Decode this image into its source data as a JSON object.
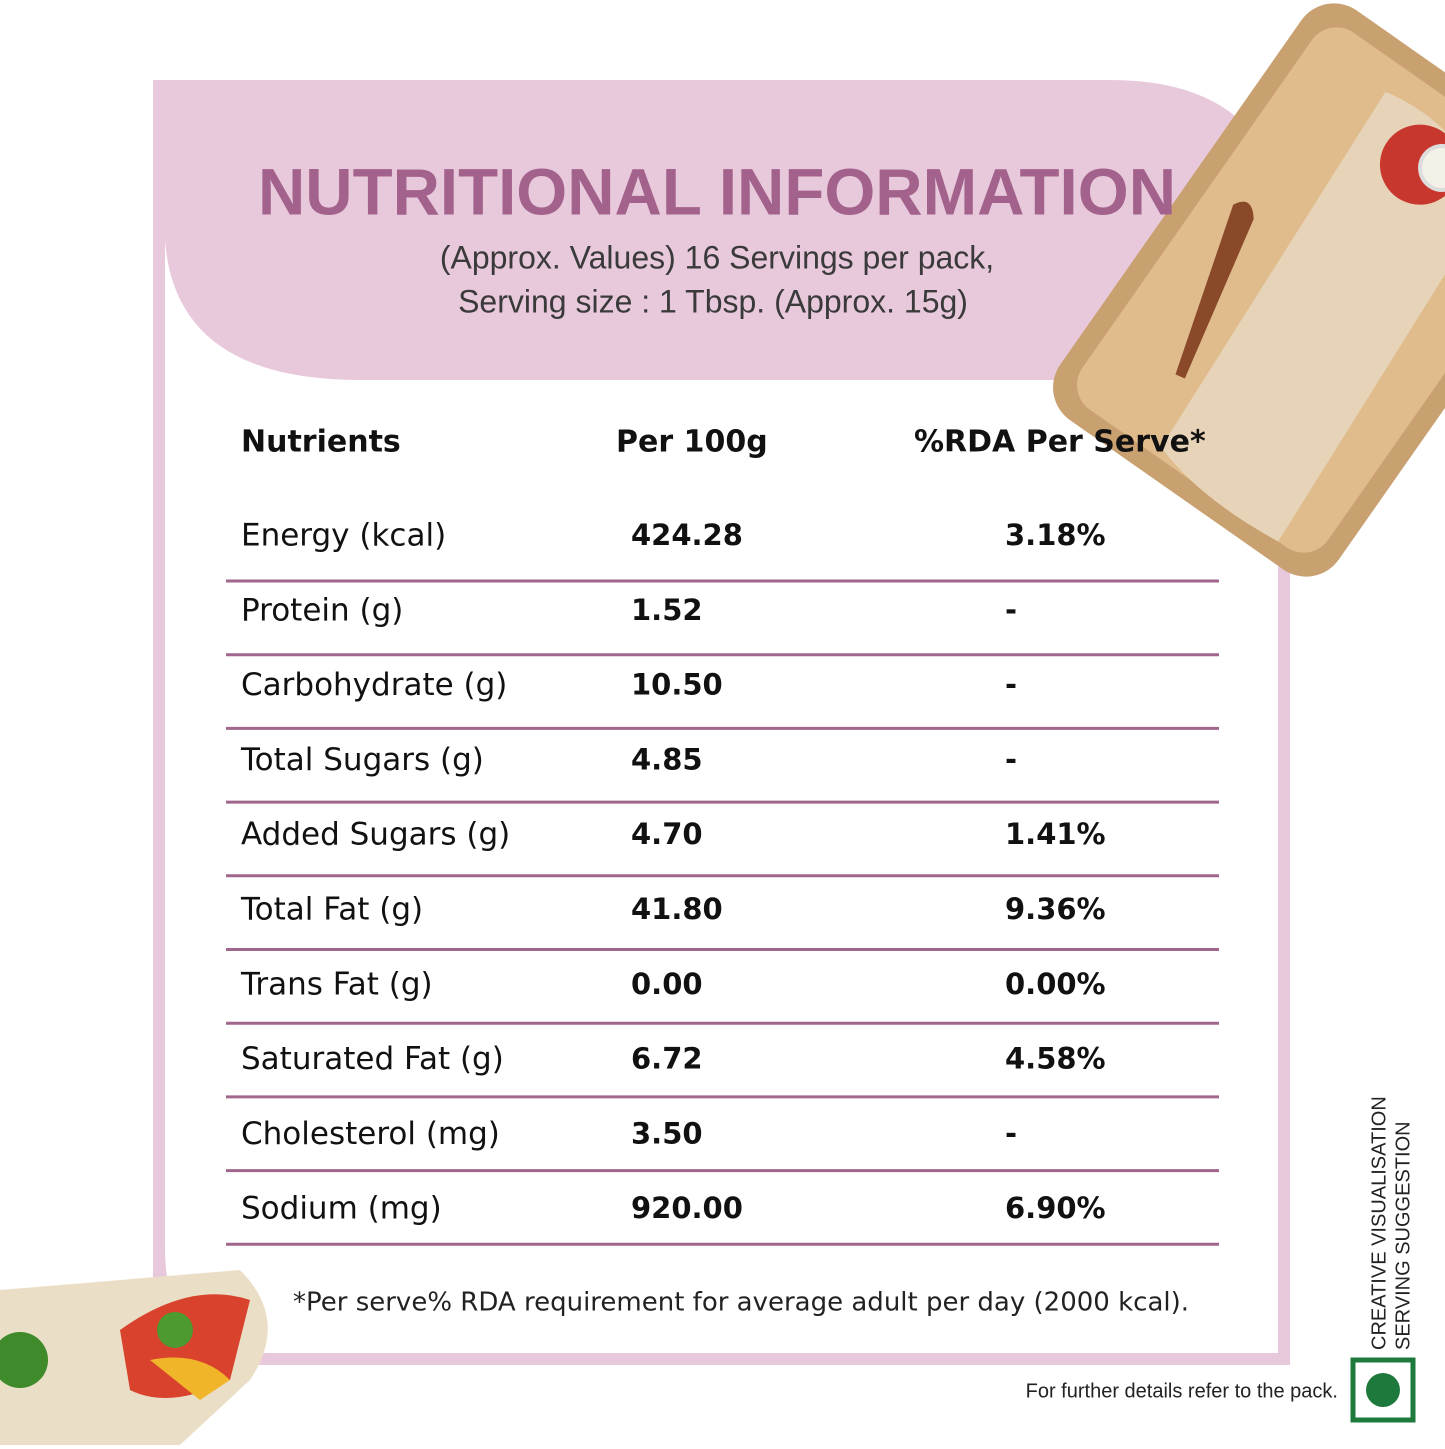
{
  "header": {
    "title": "NUTRITIONAL INFORMATION",
    "subtitle": [
      "(Approx. Values) 16 Servings per pack,",
      "Serving size : 1 Tbsp. (Approx. 15g)"
    ]
  },
  "table": {
    "columns": [
      "Nutrients",
      "Per 100g",
      "%RDA Per Serve*"
    ],
    "rows": [
      [
        "Energy (kcal)",
        "424.28",
        "3.18%"
      ],
      [
        "Protein (g)",
        "1.52",
        "-"
      ],
      [
        "Carbohydrate (g)",
        "10.50",
        "-"
      ],
      [
        "Total Sugars (g)",
        "4.85",
        "-"
      ],
      [
        "Added Sugars (g)",
        "4.70",
        "1.41%"
      ],
      [
        "Total Fat (g)",
        "41.80",
        "9.36%"
      ],
      [
        "Trans Fat (g)",
        "0.00",
        "0.00%"
      ],
      [
        "Saturated Fat (g)",
        "6.72",
        "4.58%"
      ],
      [
        "Cholesterol (mg)",
        "3.50",
        "-"
      ],
      [
        "Sodium (mg)",
        "920.00",
        "6.90%"
      ]
    ]
  },
  "footnote": "*Per serve% RDA requirement for average adult per day (2000 kcal).",
  "side_note": [
    "CREATIVE VISUALISATION",
    "SERVING SUGGESTION"
  ],
  "footer": "For further details refer to the pack."
}
